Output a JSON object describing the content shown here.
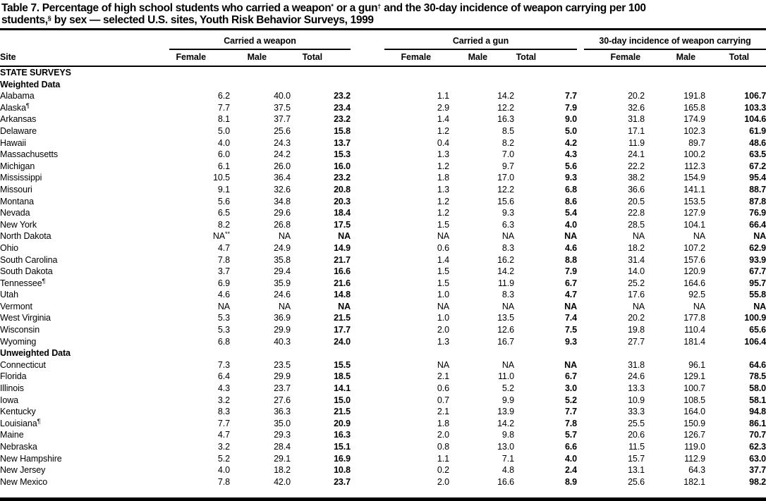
{
  "page": {
    "title_line1": "Table 7. Percentage of high school students who carried a weapon* or a gun† and the 30-day incidence of weapon carrying per 100",
    "title_line2": "students,§ by sex — selected U.S. sites, Youth Risk Behavior Surveys, 1999"
  },
  "table": {
    "site_column_label": "Site",
    "column_groups": [
      {
        "label": "Carried a weapon",
        "columns": [
          "Female",
          "Male",
          "Total"
        ]
      },
      {
        "label": "Carried a gun",
        "columns": [
          "Female",
          "Male",
          "Total"
        ]
      },
      {
        "label": "30-day incidence of weapon carrying",
        "columns": [
          "Female",
          "Male",
          "Total"
        ]
      }
    ],
    "sections": [
      {
        "heading": "STATE SURVEYS",
        "subsections": [
          {
            "heading": "Weighted Data",
            "rows": [
              {
                "site": "Alabama",
                "values": [
                  "6.2",
                  "40.0",
                  "23.2",
                  "1.1",
                  "14.2",
                  "7.7",
                  "20.2",
                  "191.8",
                  "106.7"
                ]
              },
              {
                "site": "Alaska¶",
                "values": [
                  "7.7",
                  "37.5",
                  "23.4",
                  "2.9",
                  "12.2",
                  "7.9",
                  "32.6",
                  "165.8",
                  "103.3"
                ]
              },
              {
                "site": "Arkansas",
                "values": [
                  "8.1",
                  "37.7",
                  "23.2",
                  "1.4",
                  "16.3",
                  "9.0",
                  "31.8",
                  "174.9",
                  "104.6"
                ]
              },
              {
                "site": "Delaware",
                "values": [
                  "5.0",
                  "25.6",
                  "15.8",
                  "1.2",
                  "8.5",
                  "5.0",
                  "17.1",
                  "102.3",
                  "61.9"
                ]
              },
              {
                "site": "Hawaii",
                "values": [
                  "4.0",
                  "24.3",
                  "13.7",
                  "0.4",
                  "8.2",
                  "4.2",
                  "11.9",
                  "89.7",
                  "48.6"
                ]
              },
              {
                "site": "Massachusetts",
                "values": [
                  "6.0",
                  "24.2",
                  "15.3",
                  "1.3",
                  "7.0",
                  "4.3",
                  "24.1",
                  "100.2",
                  "63.5"
                ]
              },
              {
                "site": "Michigan",
                "values": [
                  "6.1",
                  "26.0",
                  "16.0",
                  "1.2",
                  "9.7",
                  "5.6",
                  "22.2",
                  "112.3",
                  "67.2"
                ]
              },
              {
                "site": "Mississippi",
                "values": [
                  "10.5",
                  "36.4",
                  "23.2",
                  "1.8",
                  "17.0",
                  "9.3",
                  "38.2",
                  "154.9",
                  "95.4"
                ]
              },
              {
                "site": "Missouri",
                "values": [
                  "9.1",
                  "32.6",
                  "20.8",
                  "1.3",
                  "12.2",
                  "6.8",
                  "36.6",
                  "141.1",
                  "88.7"
                ]
              },
              {
                "site": "Montana",
                "values": [
                  "5.6",
                  "34.8",
                  "20.3",
                  "1.2",
                  "15.6",
                  "8.6",
                  "20.5",
                  "153.5",
                  "87.8"
                ]
              },
              {
                "site": "Nevada",
                "values": [
                  "6.5",
                  "29.6",
                  "18.4",
                  "1.2",
                  "9.3",
                  "5.4",
                  "22.8",
                  "127.9",
                  "76.9"
                ]
              },
              {
                "site": "New York",
                "values": [
                  "8.2",
                  "26.8",
                  "17.5",
                  "1.5",
                  "6.3",
                  "4.0",
                  "28.5",
                  "104.1",
                  "66.4"
                ]
              },
              {
                "site": "North Dakota",
                "values": [
                  "NA**",
                  "NA",
                  "NA",
                  "NA",
                  "NA",
                  "NA",
                  "NA",
                  "NA",
                  "NA"
                ]
              },
              {
                "site": "Ohio",
                "values": [
                  "4.7",
                  "24.9",
                  "14.9",
                  "0.6",
                  "8.3",
                  "4.6",
                  "18.2",
                  "107.2",
                  "62.9"
                ]
              },
              {
                "site": "South Carolina",
                "values": [
                  "7.8",
                  "35.8",
                  "21.7",
                  "1.4",
                  "16.2",
                  "8.8",
                  "31.4",
                  "157.6",
                  "93.9"
                ]
              },
              {
                "site": "South Dakota",
                "values": [
                  "3.7",
                  "29.4",
                  "16.6",
                  "1.5",
                  "14.2",
                  "7.9",
                  "14.0",
                  "120.9",
                  "67.7"
                ]
              },
              {
                "site": "Tennessee¶",
                "values": [
                  "6.9",
                  "35.9",
                  "21.6",
                  "1.5",
                  "11.9",
                  "6.7",
                  "25.2",
                  "164.6",
                  "95.7"
                ]
              },
              {
                "site": "Utah",
                "values": [
                  "4.6",
                  "24.6",
                  "14.8",
                  "1.0",
                  "8.3",
                  "4.7",
                  "17.6",
                  "92.5",
                  "55.8"
                ]
              },
              {
                "site": "Vermont",
                "values": [
                  "NA",
                  "NA",
                  "NA",
                  "NA",
                  "NA",
                  "NA",
                  "NA",
                  "NA",
                  "NA"
                ]
              },
              {
                "site": "West Virginia",
                "values": [
                  "5.3",
                  "36.9",
                  "21.5",
                  "1.0",
                  "13.5",
                  "7.4",
                  "20.2",
                  "177.8",
                  "100.9"
                ]
              },
              {
                "site": "Wisconsin",
                "values": [
                  "5.3",
                  "29.9",
                  "17.7",
                  "2.0",
                  "12.6",
                  "7.5",
                  "19.8",
                  "110.4",
                  "65.6"
                ]
              },
              {
                "site": "Wyoming",
                "values": [
                  "6.8",
                  "40.3",
                  "24.0",
                  "1.3",
                  "16.7",
                  "9.3",
                  "27.7",
                  "181.4",
                  "106.4"
                ]
              }
            ]
          },
          {
            "heading": "Unweighted Data",
            "rows": [
              {
                "site": "Connecticut",
                "values": [
                  "7.3",
                  "23.5",
                  "15.5",
                  "NA",
                  "NA",
                  "NA",
                  "31.8",
                  "96.1",
                  "64.6"
                ]
              },
              {
                "site": "Florida",
                "values": [
                  "6.4",
                  "29.9",
                  "18.5",
                  "2.1",
                  "11.0",
                  "6.7",
                  "24.6",
                  "129.1",
                  "78.5"
                ]
              },
              {
                "site": "Illinois",
                "values": [
                  "4.3",
                  "23.7",
                  "14.1",
                  "0.6",
                  "5.2",
                  "3.0",
                  "13.3",
                  "100.7",
                  "58.0"
                ]
              },
              {
                "site": "Iowa",
                "values": [
                  "3.2",
                  "27.6",
                  "15.0",
                  "0.7",
                  "9.9",
                  "5.2",
                  "10.9",
                  "108.5",
                  "58.1"
                ]
              },
              {
                "site": "Kentucky",
                "values": [
                  "8.3",
                  "36.3",
                  "21.5",
                  "2.1",
                  "13.9",
                  "7.7",
                  "33.3",
                  "164.0",
                  "94.8"
                ]
              },
              {
                "site": "Louisiana¶",
                "values": [
                  "7.7",
                  "35.0",
                  "20.9",
                  "1.8",
                  "14.2",
                  "7.8",
                  "25.5",
                  "150.9",
                  "86.1"
                ]
              },
              {
                "site": "Maine",
                "values": [
                  "4.7",
                  "29.3",
                  "16.3",
                  "2.0",
                  "9.8",
                  "5.7",
                  "20.6",
                  "126.7",
                  "70.7"
                ]
              },
              {
                "site": "Nebraska",
                "values": [
                  "3.2",
                  "28.4",
                  "15.1",
                  "0.8",
                  "13.0",
                  "6.6",
                  "11.5",
                  "119.0",
                  "62.3"
                ]
              },
              {
                "site": "New Hampshire",
                "values": [
                  "5.2",
                  "29.1",
                  "16.9",
                  "1.1",
                  "7.1",
                  "4.0",
                  "15.7",
                  "112.9",
                  "63.0"
                ]
              },
              {
                "site": "New Jersey",
                "values": [
                  "4.0",
                  "18.2",
                  "10.8",
                  "0.2",
                  "4.8",
                  "2.4",
                  "13.1",
                  "64.3",
                  "37.7"
                ]
              },
              {
                "site": "New Mexico",
                "values": [
                  "7.8",
                  "42.0",
                  "23.7",
                  "2.0",
                  "16.6",
                  "8.9",
                  "25.6",
                  "182.1",
                  "98.2"
                ]
              }
            ]
          }
        ]
      }
    ]
  }
}
